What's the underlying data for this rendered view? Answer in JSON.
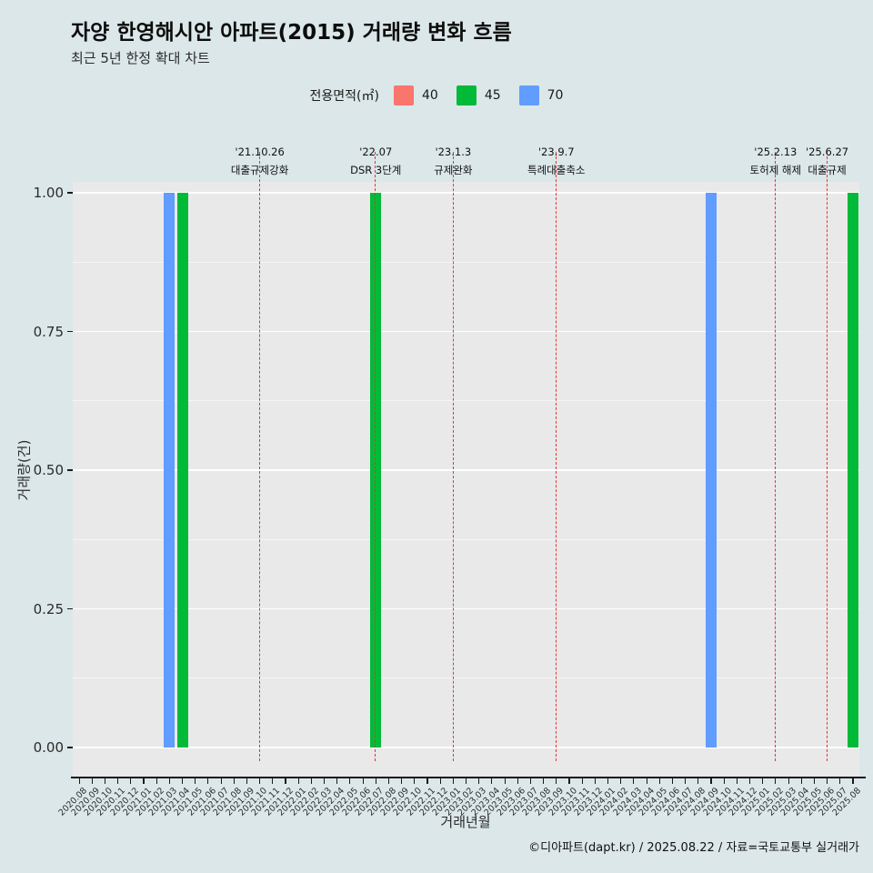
{
  "title": "자양 한영해시안 아파트(2015) 거래량 변화 흐름",
  "subtitle": "최근 5년 한정 확대 차트",
  "legend": {
    "label": "전용면적(㎡)",
    "items": [
      {
        "name": "40",
        "color": "#f8766d"
      },
      {
        "name": "45",
        "color": "#00ba38"
      },
      {
        "name": "70",
        "color": "#619cff"
      }
    ]
  },
  "chart_data": {
    "type": "bar",
    "title": "자양 한영해시안 아파트(2015) 거래량 변화 흐름",
    "xlabel": "거래년월",
    "ylabel": "거래량(건)",
    "ylim": [
      0,
      1
    ],
    "yticks": [
      0,
      0.25,
      0.5,
      0.75,
      1
    ],
    "grid": true,
    "legend_position": "top",
    "x": [
      "2020.08",
      "2020.09",
      "2020.10",
      "2020.11",
      "2020.12",
      "2021.01",
      "2021.02",
      "2021.03",
      "2021.04",
      "2021.05",
      "2021.06",
      "2021.07",
      "2021.08",
      "2021.09",
      "2021.10",
      "2021.11",
      "2021.12",
      "2022.01",
      "2022.02",
      "2022.03",
      "2022.04",
      "2022.05",
      "2022.06",
      "2022.07",
      "2022.08",
      "2022.09",
      "2022.10",
      "2022.11",
      "2022.12",
      "2023.01",
      "2023.02",
      "2023.03",
      "2023.04",
      "2023.05",
      "2023.06",
      "2023.07",
      "2023.08",
      "2023.09",
      "2023.10",
      "2023.11",
      "2023.12",
      "2024.01",
      "2024.02",
      "2024.03",
      "2024.04",
      "2024.05",
      "2024.06",
      "2024.07",
      "2024.08",
      "2024.09",
      "2024.10",
      "2024.11",
      "2024.12",
      "2025.01",
      "2025.02",
      "2025.03",
      "2025.04",
      "2025.05",
      "2025.06",
      "2025.07",
      "2025.08"
    ],
    "series": [
      {
        "name": "40",
        "color": "#f8766d",
        "points": []
      },
      {
        "name": "45",
        "color": "#00ba38",
        "points": [
          {
            "x": "2021.04",
            "y": 1
          },
          {
            "x": "2022.07",
            "y": 1
          },
          {
            "x": "2025.08",
            "y": 1
          }
        ]
      },
      {
        "name": "70",
        "color": "#619cff",
        "points": [
          {
            "x": "2021.03",
            "y": 1
          },
          {
            "x": "2024.09",
            "y": 1
          }
        ]
      }
    ],
    "annotations": [
      {
        "x": "2021.10",
        "date": "'21.10.26",
        "label": "대출규제강화"
      },
      {
        "x": "2022.07",
        "date": "'22.07",
        "label": "DSR 3단계"
      },
      {
        "x": "2023.01",
        "date": "'23.1.3",
        "label": "규제완화"
      },
      {
        "x": "2023.09",
        "date": "'23.9.7",
        "label": "특례대출축소"
      },
      {
        "x": "2025.02",
        "date": "'25.2.13",
        "label": "토허제 해제"
      },
      {
        "x": "2025.06",
        "date": "'25.6.27",
        "label": "대출규제"
      }
    ]
  },
  "footer": "©디아파트(dapt.kr) / 2025.08.22 / 자료=국토교통부 실거래가"
}
